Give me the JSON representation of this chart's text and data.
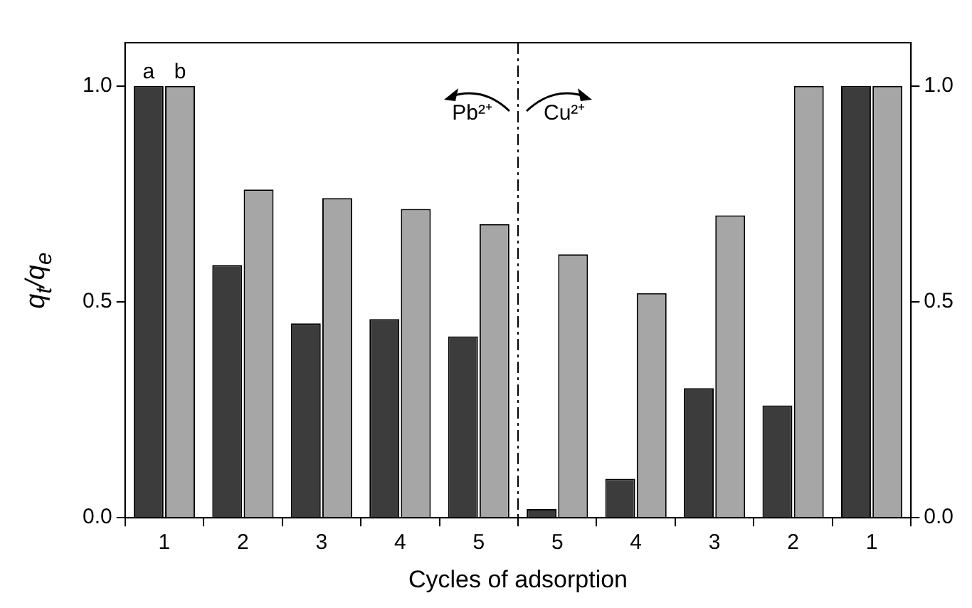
{
  "chart_data": {
    "type": "bar",
    "xlabel": "Cycles of adsorption",
    "ylabel": "q$_{t}$/q$_{e}$",
    "categories": [
      "1",
      "2",
      "3",
      "4",
      "5",
      "5",
      "4",
      "3",
      "2",
      "1"
    ],
    "series": [
      {
        "name": "a",
        "color": "#3c3c3c",
        "values": [
          1.0,
          0.585,
          0.45,
          0.46,
          0.42,
          0.02,
          0.09,
          0.3,
          0.26,
          1.0
        ]
      },
      {
        "name": "b",
        "color": "#a6a6a6",
        "values": [
          1.0,
          0.76,
          0.74,
          0.715,
          0.68,
          0.61,
          0.52,
          0.7,
          1.0,
          1.0
        ]
      }
    ],
    "ylim": [
      0,
      1.1
    ],
    "yticks": [
      {
        "value": 0,
        "label": "0.0"
      },
      {
        "value": 0.5,
        "label": "0.5"
      },
      {
        "value": 1,
        "label": "1.0"
      }
    ],
    "y2lim": [
      0,
      1.1
    ],
    "y2ticks": [
      {
        "value": 0,
        "label": "0.0"
      },
      {
        "value": 0.5,
        "label": "0.5"
      },
      {
        "value": 1,
        "label": "1.0"
      }
    ],
    "annotations": [
      "Pb²⁺",
      "Cu²⁺"
    ],
    "legend": false,
    "grid": false
  }
}
